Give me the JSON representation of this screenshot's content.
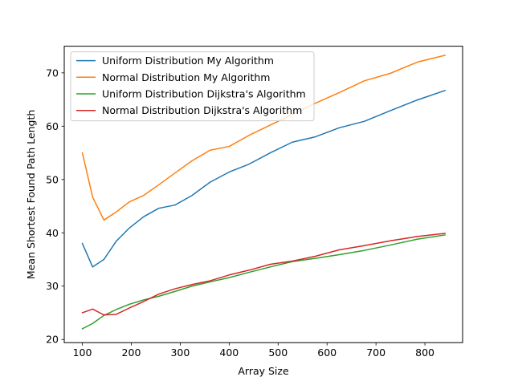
{
  "chart_data": {
    "type": "line",
    "xlabel": "Array Size",
    "ylabel": "Mean Shortest Found Path Length",
    "xlim": [
      63,
      877
    ],
    "ylim": [
      19.4,
      75.0
    ],
    "xticks": [
      100,
      200,
      300,
      400,
      500,
      600,
      700,
      800
    ],
    "yticks": [
      20,
      30,
      40,
      50,
      60,
      70
    ],
    "grid": false,
    "legend_position": "upper-left",
    "x": [
      100,
      121,
      144,
      169,
      196,
      225,
      256,
      289,
      324,
      361,
      400,
      441,
      484,
      529,
      576,
      625,
      676,
      729,
      784,
      841
    ],
    "series": [
      {
        "name": "Uniform Distribution My Algorithm",
        "color": "#1f77b4",
        "values": [
          38.0,
          33.6,
          35.0,
          38.4,
          40.9,
          43.0,
          44.6,
          45.2,
          47.0,
          49.5,
          51.4,
          52.9,
          55.0,
          57.0,
          58.0,
          59.7,
          60.9,
          62.9,
          64.9,
          66.7
        ]
      },
      {
        "name": "Normal Distribution My Algorithm",
        "color": "#ff7f0e",
        "values": [
          55.0,
          46.7,
          42.4,
          43.9,
          45.8,
          47.0,
          49.0,
          51.2,
          53.5,
          55.5,
          56.2,
          58.3,
          60.2,
          62.2,
          64.3,
          66.3,
          68.5,
          69.9,
          72.0,
          73.3
        ]
      },
      {
        "name": "Uniform Distribution Dijkstra's Algorithm",
        "color": "#2ca02c",
        "values": [
          22.0,
          23.0,
          24.5,
          25.6,
          26.6,
          27.4,
          28.1,
          29.0,
          30.0,
          30.8,
          31.6,
          32.6,
          33.6,
          34.6,
          35.2,
          35.9,
          36.7,
          37.7,
          38.8,
          39.6
        ]
      },
      {
        "name": "Normal Distribution Dijkstra's Algorithm",
        "color": "#d62728",
        "values": [
          25.0,
          25.7,
          24.6,
          24.7,
          25.9,
          27.1,
          28.5,
          29.5,
          30.3,
          31.0,
          32.1,
          33.0,
          34.1,
          34.7,
          35.6,
          36.8,
          37.6,
          38.5,
          39.3,
          39.9
        ]
      }
    ]
  }
}
